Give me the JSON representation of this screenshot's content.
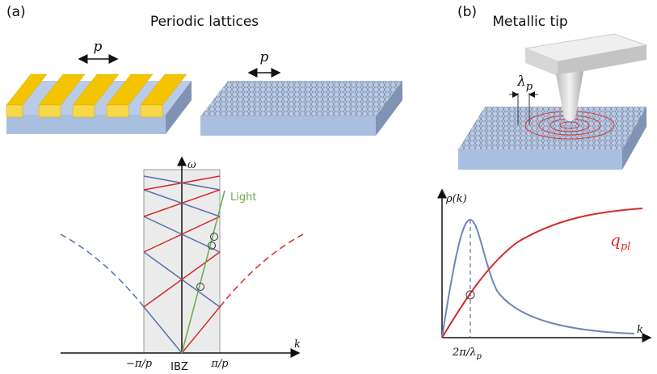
{
  "panel_a": {
    "label": "(a)",
    "title": "Periodic lattices",
    "grating_period": "p",
    "lattice_period": "p",
    "band_diagram": {
      "y_axis": "ω",
      "x_axis": "k",
      "light_line": "Light",
      "x_labels": [
        "−π/p",
        "IBZ",
        "π/p"
      ]
    }
  },
  "panel_b": {
    "label": "(b)",
    "title": "Metallic tip",
    "wavelength": {
      "symbol": "λ",
      "subscript": "p"
    },
    "plot": {
      "y_axis": "ρ(k)",
      "x_axis": "k",
      "curve_label": {
        "symbol": "q",
        "subscript": "pl"
      },
      "x_label": {
        "prefix": "2π/λ",
        "subscript": "p"
      }
    }
  }
}
